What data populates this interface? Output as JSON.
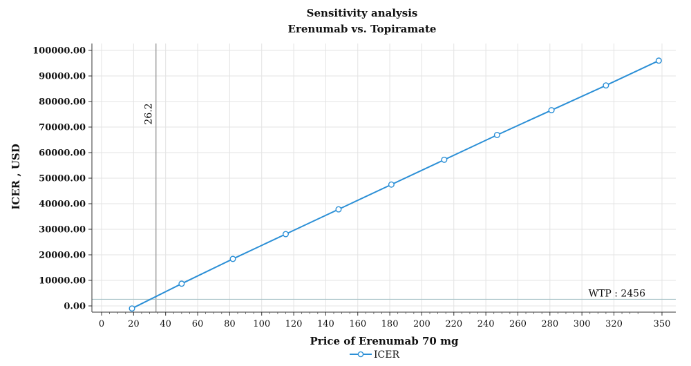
{
  "chart_data": {
    "type": "line",
    "title": "Sensitivity analysis",
    "subtitle": "Erenumab vs. Topiramate",
    "xlabel": "Price of Erenumab 70 mg",
    "ylabel": "ICER , USD",
    "xlim": [
      0,
      350
    ],
    "ylim": [
      0,
      100000
    ],
    "x_ticks": [
      0,
      20,
      40,
      60,
      80,
      100,
      120,
      140,
      160,
      180,
      200,
      220,
      240,
      260,
      280,
      300,
      320,
      350
    ],
    "x_tick_labels": [
      "0",
      "20",
      "40",
      "60",
      "80",
      "100",
      "120",
      "140",
      "160",
      "180",
      "200",
      "220",
      "240",
      "260",
      "280",
      "300",
      "320",
      "350"
    ],
    "y_ticks": [
      0,
      10000,
      20000,
      30000,
      40000,
      50000,
      60000,
      70000,
      80000,
      90000,
      100000
    ],
    "y_tick_labels": [
      "0.00",
      "10000.00",
      "20000.00",
      "30000.00",
      "40000.00",
      "50000.00",
      "60000.00",
      "70000.00",
      "80000.00",
      "90000.00",
      "100000.00"
    ],
    "grid": true,
    "series": [
      {
        "name": "ICER",
        "color": "#2b8fd6",
        "marker": "open-circle",
        "x": [
          19,
          50,
          82,
          115,
          148,
          181,
          214,
          247,
          281,
          315,
          348
        ],
        "y": [
          -1000,
          8700,
          18400,
          28100,
          37800,
          47500,
          57200,
          66900,
          76600,
          86300,
          96000
        ]
      }
    ],
    "annotations": {
      "vline": {
        "x": 26.2,
        "label": "26.2",
        "color": "#999999"
      },
      "hline": {
        "y": 2456,
        "label": "WTP : 2456",
        "color": "#aac4c9"
      }
    },
    "legend": {
      "position": "bottom-center",
      "label": "ICER"
    }
  }
}
